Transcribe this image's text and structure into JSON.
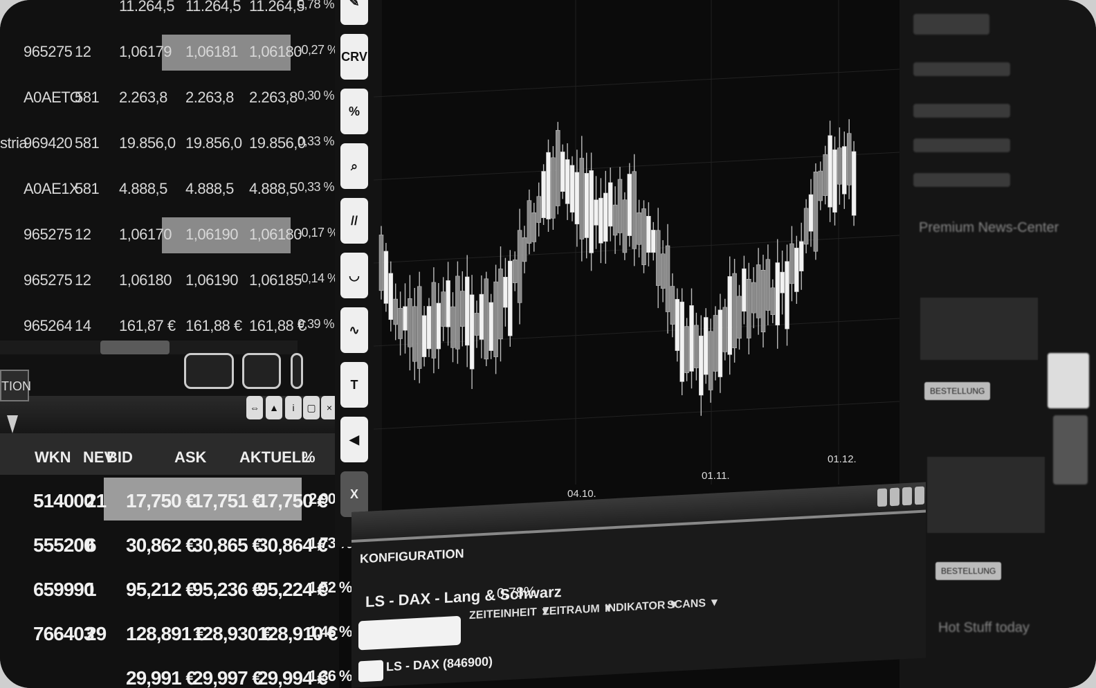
{
  "top_quotes": [
    {
      "name": "",
      "wkn": "",
      "n": "",
      "bid": "11.264,5",
      "ask": "11.264,5",
      "akt": "11.264,5",
      "pct": "0,78 %",
      "hl": false
    },
    {
      "name": "",
      "wkn": "965275",
      "n": "12",
      "bid": "1,06179",
      "ask": "1,06181",
      "akt": "1,06180",
      "pct": "-0,27 %",
      "hl": true
    },
    {
      "name": "",
      "wkn": "A0AETO",
      "n": "581",
      "bid": "2.263,8",
      "ask": "2.263,8",
      "akt": "2.263,8",
      "pct": "0,30 %",
      "hl": false
    },
    {
      "name": "stria",
      "wkn": "969420",
      "n": "581",
      "bid": "19.856,0",
      "ask": "19.856,0",
      "akt": "19.856,0",
      "pct": "0,33 %",
      "hl": false
    },
    {
      "name": "",
      "wkn": "A0AE1X",
      "n": "581",
      "bid": "4.888,5",
      "ask": "4.888,5",
      "akt": "4.888,5",
      "pct": "0,33 %",
      "hl": false
    },
    {
      "name": "",
      "wkn": "965275",
      "n": "12",
      "bid": "1,06170",
      "ask": "1,06190",
      "akt": "1,06180",
      "pct": "-0,17 %",
      "hl": true
    },
    {
      "name": "",
      "wkn": "965275",
      "n": "12",
      "bid": "1,06180",
      "ask": "1,06190",
      "akt": "1,06185",
      "pct": "-0,14 %",
      "hl": false
    },
    {
      "name": "",
      "wkn": "965264",
      "n": "14",
      "bid": "161,87 €",
      "ask": "161,88 €",
      "akt": "161,88 €",
      "pct": "0,39 %",
      "hl": false
    }
  ],
  "tab_fragment": "TION",
  "bottom_table": {
    "headers": {
      "wkn": "WKN",
      "nev": "NEV",
      "bid": "BID",
      "ask": "ASK",
      "akt": "AKTUELL",
      "pct": "%"
    },
    "rows": [
      {
        "wkn": "514000",
        "n": "21",
        "bid": "17,750 €",
        "ask": "17,751 €",
        "akt": "17,750 €",
        "pct": "2,90 %",
        "hl": true
      },
      {
        "wkn": "555200",
        "n": "6",
        "bid": "30,862 €",
        "ask": "30,865 €",
        "akt": "30,864 €",
        "pct": "1,73 %",
        "hl": false
      },
      {
        "wkn": "659990",
        "n": "1",
        "bid": "95,212 €",
        "ask": "95,236 €",
        "akt": "95,224 €",
        "pct": "1,52 %",
        "hl": false
      },
      {
        "wkn": "766403",
        "n": "29",
        "bid": "128,891 €",
        "ask": "128,930 €",
        "akt": "128,910 €",
        "pct": "1,46 %",
        "hl": false
      },
      {
        "wkn": "",
        "n": "",
        "bid": "29,991 €",
        "ask": "29,997 €",
        "akt": "29,994 €",
        "pct": "1,36 %",
        "hl": false
      }
    ]
  },
  "toolbar": {
    "buttons": [
      "",
      "CRV",
      "%",
      "",
      "//",
      "",
      "",
      "",
      "",
      "X"
    ],
    "icons": [
      "pencil-icon",
      "crv-icon",
      "percent-icon",
      "zoom-icon",
      "parallel-lines-icon",
      "arc-icon",
      "wave-icon",
      "text-icon",
      "speaker-icon",
      "close-icon"
    ]
  },
  "chart": {
    "x_labels": [
      "04.10.",
      "01.11.",
      "01.12."
    ],
    "watermark": "LANG & SCHWARZ"
  },
  "config": {
    "label": "KONFIGURATION",
    "instrument": "LS - DAX - Lang & Schwarz",
    "change": "0,78%",
    "dropdowns": [
      "ZEITEINHEIT",
      "ZEITRAUM",
      "INDIKATOR",
      "SCANS"
    ],
    "sub_instrument": "LS - DAX (846900)"
  },
  "news": {
    "title": "Premium News-Center",
    "hot": "Hot Stuff today",
    "button": "BESTELLUNG"
  },
  "colors": {
    "background": "#0b0b0b",
    "highlight": "#8a8a8a",
    "text": "#e6e6e6"
  }
}
